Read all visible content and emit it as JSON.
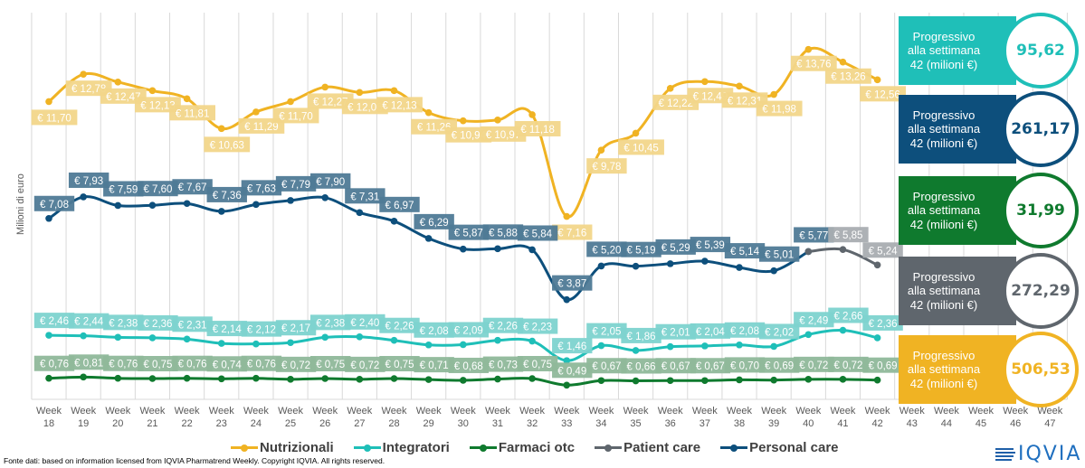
{
  "chart_data": {
    "type": "line",
    "title": "",
    "ylabel": "Milioni di euro",
    "xlabel": "",
    "x_prefix": "Week",
    "x": [
      18,
      19,
      20,
      21,
      22,
      23,
      24,
      25,
      26,
      27,
      28,
      29,
      30,
      31,
      32,
      33,
      34,
      35,
      36,
      37,
      38,
      39,
      40,
      41,
      42,
      43,
      44,
      45,
      46,
      47
    ],
    "ylim": [
      0,
      15.7
    ],
    "grid": "vertical",
    "legend_position": "bottom",
    "value_prefix": "€ ",
    "series": [
      {
        "name": "Nutrizionali",
        "color": "#f0b323",
        "label_bg": "#f2d68a",
        "values": [
          11.7,
          12.78,
          12.47,
          12.13,
          11.81,
          10.63,
          11.29,
          11.7,
          12.27,
          12.06,
          12.13,
          11.26,
          10.94,
          10.97,
          11.18,
          7.16,
          9.78,
          10.45,
          12.22,
          12.49,
          12.31,
          11.98,
          13.76,
          13.26,
          12.56
        ],
        "labels": [
          "€ 11,70",
          "€ 12,78",
          "€ 12,47",
          "€ 12,13",
          "€ 11,81",
          "€ 10,63",
          "€ 11,29",
          "€ 11,70",
          "€ 12,27",
          "€ 12,06",
          "€ 12,13",
          "€ 11,26",
          "€ 10,94",
          "€ 10,97",
          "€ 11,18",
          "€ 7,16",
          "€ 9,78",
          "€ 10,45",
          "€ 12,22",
          "€ 12,49",
          "€ 12,31",
          "€ 11,98",
          "€ 13,76",
          "€ 13,26",
          "€ 12,56"
        ]
      },
      {
        "name": "Integratori",
        "color": "#1fbfb8",
        "label_bg": "#7dd3cf",
        "values": [
          2.46,
          2.44,
          2.38,
          2.36,
          2.31,
          2.14,
          2.12,
          2.17,
          2.38,
          2.4,
          2.26,
          2.08,
          2.09,
          2.26,
          2.23,
          1.46,
          2.05,
          1.86,
          2.01,
          2.04,
          2.08,
          2.02,
          2.49,
          2.66,
          2.36
        ],
        "labels": [
          "€ 2,46",
          "€ 2,44",
          "€ 2,38",
          "€ 2,36",
          "€ 2,31",
          "€ 2,14",
          "€ 2,12",
          "€ 2,17",
          "€ 2,38",
          "€ 2,40",
          "€ 2,26",
          "€ 2,08",
          "€ 2,09",
          "€ 2,26",
          "€ 2,23",
          "€ 1,46",
          "€ 2,05",
          "€ 1,86",
          "€ 2,01",
          "€ 2,04",
          "€ 2,08",
          "€ 2,02",
          "€ 2,49",
          "€ 2,66",
          "€ 2,36"
        ]
      },
      {
        "name": "Farmaci otc",
        "color": "#0f7a2e",
        "label_bg": "#8fb89a",
        "values": [
          0.76,
          0.81,
          0.76,
          0.75,
          0.76,
          0.74,
          0.76,
          0.72,
          0.75,
          0.72,
          0.75,
          0.71,
          0.68,
          0.73,
          0.75,
          0.49,
          0.67,
          0.66,
          0.67,
          0.67,
          0.7,
          0.69,
          0.72,
          0.72,
          0.69
        ],
        "labels": [
          "€ 0,76",
          "€ 0,81",
          "€ 0,76",
          "€ 0,75",
          "€ 0,76",
          "€ 0,74",
          "€ 0,76",
          "€ 0,72",
          "€ 0,75",
          "€ 0,72",
          "€ 0,75",
          "€ 0,71",
          "€ 0,68",
          "€ 0,73",
          "€ 0,75",
          "€ 0,49",
          "€ 0,67",
          "€ 0,66",
          "€ 0,67",
          "€ 0,67",
          "€ 0,70",
          "€ 0,69",
          "€ 0,72",
          "€ 0,72",
          "€ 0,69"
        ]
      },
      {
        "name": "Patient care",
        "color": "#5f666d",
        "label_bg": "#a9adb1",
        "start_index": 22,
        "values": [
          5.77,
          5.85,
          5.24
        ],
        "labels": [
          null,
          "€ 5,85",
          "€ 5,24"
        ]
      },
      {
        "name": "Personal care",
        "color": "#0d4f7c",
        "label_bg": "#4f7a96",
        "values": [
          7.08,
          7.93,
          7.59,
          7.6,
          7.67,
          7.36,
          7.63,
          7.79,
          7.9,
          7.31,
          6.97,
          6.29,
          5.87,
          5.88,
          5.84,
          3.87,
          5.2,
          5.19,
          5.29,
          5.39,
          5.14,
          5.01,
          5.77
        ],
        "labels": [
          "€ 7,08",
          "€ 7,93",
          "€ 7,59",
          "€ 7,60",
          "€ 7,67",
          "€ 7,36",
          "€ 7,63",
          "€ 7,79",
          "€ 7,90",
          "€ 7,31",
          "€ 6,97",
          "€ 6,29",
          "€ 5,87",
          "€ 5,88",
          "€ 5,84",
          "€ 3,87",
          "€ 5,20",
          "€ 5,19",
          "€ 5,29",
          "€ 5,39",
          "€ 5,14",
          "€ 5,01",
          "€ 5,77"
        ]
      }
    ]
  },
  "panels": [
    {
      "text_line1": "Progressivo",
      "text_line2": "alla settimana",
      "text_line3": "42 (milioni €)",
      "value": "95,62",
      "color": "#1fbfb8",
      "value_color": "#1fbfb8"
    },
    {
      "text_line1": "Progressivo",
      "text_line2": "alla settimana",
      "text_line3": "42 (milioni €)",
      "value": "261,17",
      "color": "#0d4f7c",
      "value_color": "#0d4f7c"
    },
    {
      "text_line1": "Progressivo",
      "text_line2": "alla settimana",
      "text_line3": "42 (milioni €)",
      "value": "31,99",
      "color": "#0f7a2e",
      "value_color": "#0f7a2e"
    },
    {
      "text_line1": "Progressivo",
      "text_line2": "alla settimana",
      "text_line3": "42 (milioni €)",
      "value": "272,29",
      "color": "#5f666d",
      "value_color": "#5f666d"
    },
    {
      "text_line1": "Progressivo",
      "text_line2": "alla settimana",
      "text_line3": "42 (milioni €)",
      "value": "506,53",
      "color": "#f0b323",
      "value_color": "#f0b323"
    }
  ],
  "footer": "Fonte dati: based on information licensed from IQVIA Pharmatrend Weekly. Copyright IQVIA. All rights reserved.",
  "logo": "IQVIA"
}
